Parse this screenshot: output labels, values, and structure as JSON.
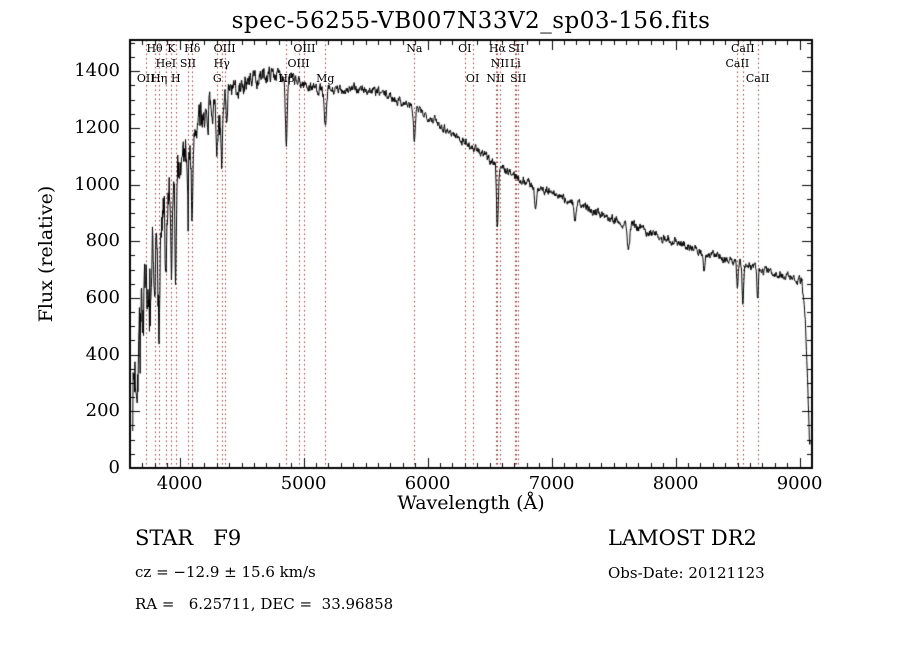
{
  "title": "spec-56255-VB007N33V2_sp03-156.fits",
  "axes": {
    "xlabel": "Wavelength (Å)",
    "ylabel": "Flux (relative)",
    "x_ticks": [
      4000,
      5000,
      6000,
      7000,
      8000,
      9000
    ],
    "y_ticks": [
      0,
      200,
      400,
      600,
      800,
      1000,
      1200,
      1400
    ]
  },
  "footer": {
    "classification": "STAR   F9",
    "cz": "cz = −12.9 ± 15.6 km/s",
    "radec": "RA =   6.25711, DEC =  33.96858",
    "survey": "LAMOST DR2",
    "obs_date": "Obs-Date: 20121123"
  },
  "spectral_lines": [
    {
      "label": "Hθ",
      "wavelength": 3798,
      "row": 1
    },
    {
      "label": "K",
      "wavelength": 3934,
      "row": 1
    },
    {
      "label": "Hδ",
      "wavelength": 4102,
      "row": 1
    },
    {
      "label": "OIII",
      "wavelength": 4363,
      "row": 1
    },
    {
      "label": "OIII",
      "wavelength": 5007,
      "row": 1
    },
    {
      "label": "Na",
      "wavelength": 5893,
      "row": 1
    },
    {
      "label": "OI",
      "wavelength": 6300,
      "row": 1
    },
    {
      "label": "Hα",
      "wavelength": 6563,
      "row": 1
    },
    {
      "label": "SII",
      "wavelength": 6716,
      "row": 1
    },
    {
      "label": "CaII",
      "wavelength": 8542,
      "row": 1
    },
    {
      "label": "HeI",
      "wavelength": 3889,
      "row": 2
    },
    {
      "label": "SII",
      "wavelength": 4068,
      "row": 2
    },
    {
      "label": "Hγ",
      "wavelength": 4340,
      "row": 2
    },
    {
      "label": "OIII",
      "wavelength": 4959,
      "row": 2
    },
    {
      "label": "NII",
      "wavelength": 6583,
      "row": 2
    },
    {
      "label": "Li",
      "wavelength": 6708,
      "row": 2
    },
    {
      "label": "CaII",
      "wavelength": 8498,
      "row": 2
    },
    {
      "label": "OII",
      "wavelength": 3727,
      "row": 3
    },
    {
      "label": "Hη",
      "wavelength": 3835,
      "row": 3
    },
    {
      "label": "H",
      "wavelength": 3969,
      "row": 3
    },
    {
      "label": "G",
      "wavelength": 4304,
      "row": 3
    },
    {
      "label": "Hβ",
      "wavelength": 4861,
      "row": 3
    },
    {
      "label": "Mg",
      "wavelength": 5175,
      "row": 3
    },
    {
      "label": "OI",
      "wavelength": 6363,
      "row": 3
    },
    {
      "label": "NII",
      "wavelength": 6548,
      "row": 3
    },
    {
      "label": "SII",
      "wavelength": 6731,
      "row": 3
    },
    {
      "label": "CaII",
      "wavelength": 8662,
      "row": 3
    }
  ],
  "chart_data": {
    "type": "line",
    "title": "spec-56255-VB007N33V2_sp03-156.fits",
    "xlabel": "Wavelength (Å)",
    "ylabel": "Flux (relative)",
    "xlim": [
      3600,
      9100
    ],
    "ylim": [
      0,
      1510
    ],
    "x_ticks": [
      4000,
      5000,
      6000,
      7000,
      8000,
      9000
    ],
    "y_ticks": [
      0,
      200,
      400,
      600,
      800,
      1000,
      1200,
      1400
    ],
    "grid": false,
    "legend": "none",
    "line_color": "#000000",
    "marker_line_color": "#9e3a3a",
    "continuum_points": [
      [
        3620,
        260
      ],
      [
        3680,
        480
      ],
      [
        3720,
        620
      ],
      [
        3760,
        700
      ],
      [
        3800,
        780
      ],
      [
        3850,
        850
      ],
      [
        3900,
        930
      ],
      [
        3950,
        990
      ],
      [
        4000,
        1080
      ],
      [
        4050,
        1130
      ],
      [
        4150,
        1220
      ],
      [
        4250,
        1280
      ],
      [
        4350,
        1310
      ],
      [
        4450,
        1340
      ],
      [
        4550,
        1360
      ],
      [
        4650,
        1378
      ],
      [
        4750,
        1392
      ],
      [
        4850,
        1382
      ],
      [
        4950,
        1362
      ],
      [
        5050,
        1346
      ],
      [
        5150,
        1336
      ],
      [
        5250,
        1330
      ],
      [
        5350,
        1336
      ],
      [
        5450,
        1336
      ],
      [
        5550,
        1330
      ],
      [
        5650,
        1320
      ],
      [
        5750,
        1300
      ],
      [
        5850,
        1280
      ],
      [
        5950,
        1255
      ],
      [
        6050,
        1230
      ],
      [
        6150,
        1195
      ],
      [
        6250,
        1165
      ],
      [
        6350,
        1135
      ],
      [
        6450,
        1105
      ],
      [
        6550,
        1075
      ],
      [
        6650,
        1045
      ],
      [
        6750,
        1020
      ],
      [
        6850,
        1000
      ],
      [
        6950,
        980
      ],
      [
        7050,
        960
      ],
      [
        7150,
        940
      ],
      [
        7250,
        925
      ],
      [
        7350,
        905
      ],
      [
        7450,
        890
      ],
      [
        7550,
        870
      ],
      [
        7650,
        855
      ],
      [
        7750,
        840
      ],
      [
        7850,
        820
      ],
      [
        7950,
        805
      ],
      [
        8050,
        790
      ],
      [
        8150,
        775
      ],
      [
        8250,
        760
      ],
      [
        8350,
        745
      ],
      [
        8450,
        730
      ],
      [
        8550,
        718
      ],
      [
        8650,
        705
      ],
      [
        8750,
        692
      ],
      [
        8850,
        680
      ],
      [
        8950,
        668
      ],
      [
        9020,
        658
      ],
      [
        9050,
        480
      ],
      [
        9080,
        90
      ]
    ],
    "absorption_lines": [
      [
        3727,
        120,
        6
      ],
      [
        3750,
        210,
        5
      ],
      [
        3771,
        260,
        6
      ],
      [
        3798,
        300,
        6
      ],
      [
        3835,
        330,
        6
      ],
      [
        3889,
        330,
        6
      ],
      [
        3934,
        380,
        6
      ],
      [
        3969,
        360,
        6
      ],
      [
        4068,
        120,
        5
      ],
      [
        4102,
        300,
        7
      ],
      [
        4227,
        120,
        5
      ],
      [
        4304,
        160,
        9
      ],
      [
        4340,
        260,
        7
      ],
      [
        4383,
        100,
        5
      ],
      [
        4861,
        230,
        7
      ],
      [
        5175,
        140,
        9
      ],
      [
        5893,
        120,
        7
      ],
      [
        6563,
        230,
        7
      ],
      [
        6870,
        90,
        8
      ],
      [
        7190,
        60,
        8
      ],
      [
        7620,
        90,
        9
      ],
      [
        8230,
        60,
        8
      ],
      [
        8498,
        90,
        6
      ],
      [
        8542,
        130,
        6
      ],
      [
        8662,
        110,
        6
      ]
    ],
    "noise": {
      "seed": 7,
      "base_amp": 14,
      "blue_amp": 150,
      "blue_scale": 400,
      "step": 3
    }
  }
}
